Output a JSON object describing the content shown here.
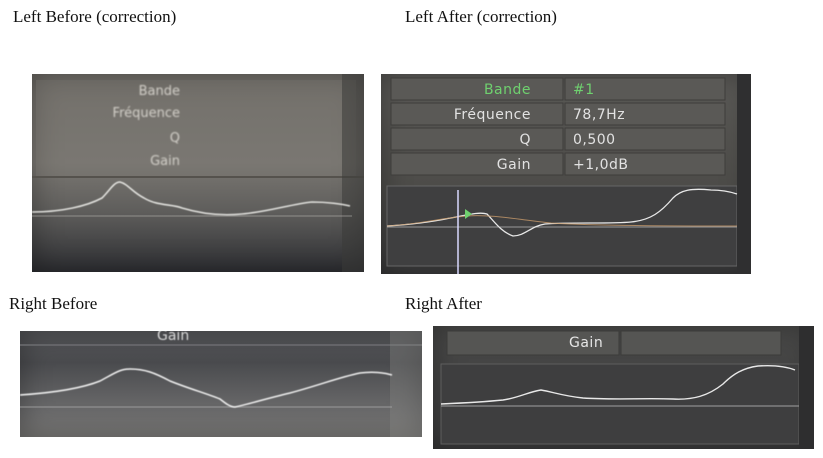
{
  "captions": {
    "left_before": "Left Before (correction)",
    "left_after": "Left After (correction)",
    "right_before": "Right Before",
    "right_after": "Right After"
  },
  "left_before": {
    "labels": {
      "band": "Bande",
      "frequency": "Fréquence",
      "q": "Q",
      "gain": "Gain"
    }
  },
  "left_after": {
    "labels": {
      "band": "Bande",
      "frequency": "Fréquence",
      "q": "Q",
      "gain": "Gain"
    },
    "values": {
      "band": "#1",
      "frequency": "78,7Hz",
      "q": "0,500",
      "gain": "+1,0dB"
    }
  },
  "right_before": {
    "labels": {
      "gain": "Gain"
    }
  },
  "right_after": {
    "labels": {
      "gain": "Gain"
    }
  },
  "colors": {
    "highlight_green": "#6fd06f",
    "curve": "#e8e8e8",
    "cursor": "#d8d8ff"
  }
}
